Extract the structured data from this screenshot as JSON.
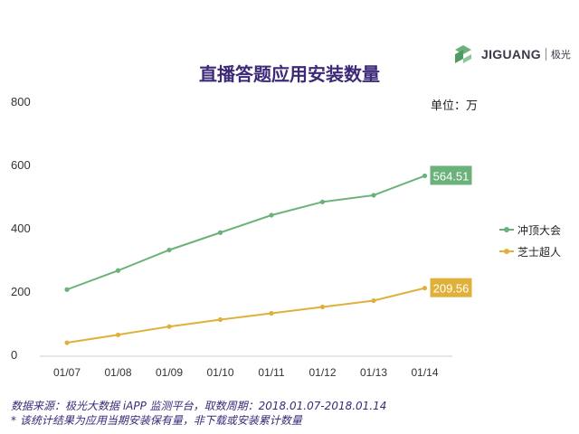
{
  "logo": {
    "brand": "JIGUANG",
    "cn": "极光",
    "color": "#6bb27a"
  },
  "unit": "单位：万",
  "footer": {
    "source": "数据来源：极光大数据 iAPP 监测平台，取数周期：2018.01.07-2018.01.14",
    "note": "* 该统计结果为应用当期安装保有量，非下载或安装累计数量"
  },
  "chart_data": {
    "type": "line",
    "title": "直播答题应用安装数量",
    "categories": [
      "01/07",
      "01/08",
      "01/09",
      "01/10",
      "01/11",
      "01/12",
      "01/13",
      "01/14"
    ],
    "ylim": [
      0,
      800
    ],
    "yticks": [
      0,
      200,
      400,
      600,
      800
    ],
    "grid": false,
    "legend_position": "right",
    "series": [
      {
        "name": "冲顶大会",
        "color": "#6bb27a",
        "values": [
          205,
          265,
          330,
          385,
          440,
          482,
          503,
          564.51
        ],
        "end_label": "564.51"
      },
      {
        "name": "芝士超人",
        "color": "#e0b13a",
        "values": [
          37,
          62,
          88,
          110,
          130,
          150,
          170,
          209.56
        ],
        "end_label": "209.56"
      }
    ]
  }
}
